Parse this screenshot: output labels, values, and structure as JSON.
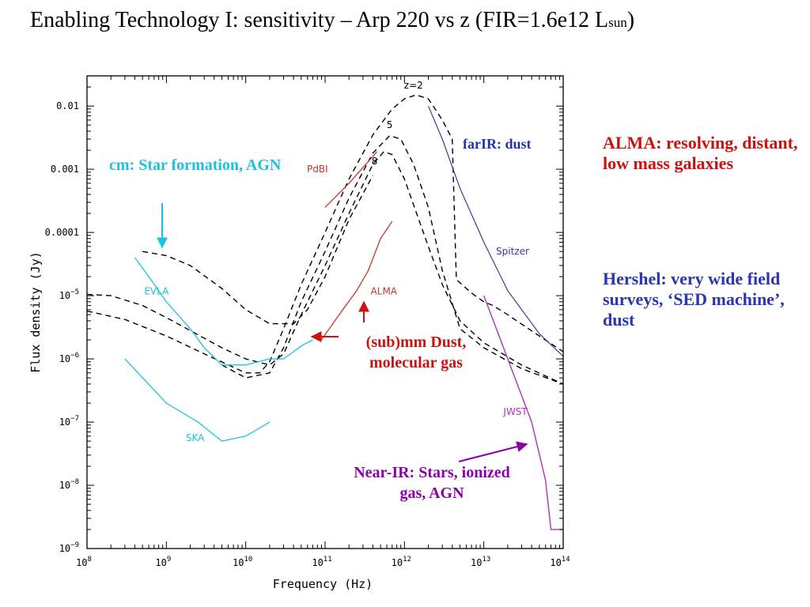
{
  "slide": {
    "title_main": "Enabling Technology I: sensitivity – Arp 220 vs z  (FIR=1.6e12 L",
    "title_sub": "sun",
    "title_end": ")"
  },
  "annotations": {
    "cm": "cm: Star formation, AGN",
    "submm": "(sub)mm Dust, molecular gas",
    "nearir": "Near-IR: Stars, ionized gas,  AGN",
    "farir": "farIR: dust",
    "alma_note": "ALMA: resolving, distant, low mass galaxies",
    "herschel_note": "Hershel: very wide field surveys, ‘SED machine’, dust"
  },
  "colors": {
    "cyan": "#1cc1e2",
    "red": "#cc1111",
    "purple": "#8b00a8",
    "blue": "#2233aa",
    "sed": "#000000",
    "alma_curve": "#c0392b",
    "jwst_curve": "#b030c0",
    "spitzer_curve": "#3a3a9a"
  },
  "chart_data": {
    "type": "line",
    "title": "",
    "xlabel": "Frequency (Hz)",
    "ylabel": "Flux density (Jy)",
    "xscale": "log",
    "yscale": "log",
    "xlim": [
      100000000,
      100000000000000
    ],
    "ylim": [
      1e-09,
      0.03
    ],
    "x_ticks": [
      {
        "v": 100000000.0,
        "base": "10",
        "exp": "8"
      },
      {
        "v": 1000000000.0,
        "base": "10",
        "exp": "9"
      },
      {
        "v": 10000000000.0,
        "base": "10",
        "exp": "10"
      },
      {
        "v": 100000000000.0,
        "base": "10",
        "exp": "11"
      },
      {
        "v": 1000000000000.0,
        "base": "10",
        "exp": "12"
      },
      {
        "v": 10000000000000.0,
        "base": "10",
        "exp": "13"
      },
      {
        "v": 100000000000000.0,
        "base": "10",
        "exp": "14"
      }
    ],
    "y_ticks": [
      {
        "v": 0.01,
        "text": "0.01"
      },
      {
        "v": 0.001,
        "text": "0.001"
      },
      {
        "v": 0.0001,
        "text": "0.0001"
      },
      {
        "v": 1e-05,
        "base": "10",
        "exp": "−5"
      },
      {
        "v": 1e-06,
        "base": "10",
        "exp": "−6"
      },
      {
        "v": 1e-07,
        "base": "10",
        "exp": "−7"
      },
      {
        "v": 1e-08,
        "base": "10",
        "exp": "−8"
      },
      {
        "v": 1e-09,
        "base": "10",
        "exp": "−9"
      }
    ],
    "series": [
      {
        "name": "z=2",
        "kind": "sed",
        "label_at": [
          1300000000000.0,
          0.019
        ],
        "points": [
          [
            100000000.0,
            5.7e-06
          ],
          [
            300000000.0,
            4.2e-06
          ],
          [
            1000000000.0,
            2.3e-06
          ],
          [
            3000000000.0,
            1.2e-06
          ],
          [
            10000000000.0,
            6e-07
          ],
          [
            15000000000.0,
            6e-07
          ],
          [
            20000000000.0,
            9e-07
          ],
          [
            30000000000.0,
            3e-06
          ],
          [
            50000000000.0,
            1.5e-05
          ],
          [
            100000000000.0,
            0.0001
          ],
          [
            200000000000.0,
            0.0007
          ],
          [
            400000000000.0,
            0.0035
          ],
          [
            700000000000.0,
            0.009
          ],
          [
            1000000000000.0,
            0.013
          ],
          [
            1400000000000.0,
            0.015
          ],
          [
            2000000000000.0,
            0.013
          ],
          [
            3000000000000.0,
            0.006
          ],
          [
            4000000000000.0,
            0.003
          ],
          [
            4500000000000.0,
            1.8e-05
          ],
          [
            7000000000000.0,
            1.1e-05
          ],
          [
            10000000000000.0,
            8e-06
          ],
          [
            13000000000000.0,
            7e-06
          ],
          [
            20000000000000.0,
            5e-06
          ],
          [
            50000000000000.0,
            2.3e-06
          ],
          [
            100000000000000.0,
            1.3e-06
          ]
        ]
      },
      {
        "name": "5",
        "kind": "sed",
        "label_at": [
          650000000000.0,
          0.0045
        ],
        "points": [
          [
            5000000000.0,
            8e-07
          ],
          [
            10000000000.0,
            5e-07
          ],
          [
            20000000000.0,
            6e-07
          ],
          [
            30000000000.0,
            1.5e-06
          ],
          [
            50000000000.0,
            8e-06
          ],
          [
            100000000000.0,
            5e-05
          ],
          [
            200000000000.0,
            0.00035
          ],
          [
            400000000000.0,
            0.0018
          ],
          [
            650000000000.0,
            0.0034
          ],
          [
            900000000000.0,
            0.003
          ],
          [
            1300000000000.0,
            0.0012
          ],
          [
            2000000000000.0,
            0.00025
          ],
          [
            3000000000000.0,
            2.5e-05
          ],
          [
            5000000000000.0,
            3e-06
          ],
          [
            10000000000000.0,
            1.5e-06
          ],
          [
            30000000000000.0,
            7e-07
          ],
          [
            100000000000000.0,
            4e-07
          ]
        ]
      },
      {
        "name": "8",
        "kind": "sed",
        "label_at": [
          420000000000.0,
          0.0012
        ],
        "points": [
          [
            100000000.0,
            1.05e-05
          ],
          [
            200000000.0,
            1e-05
          ],
          [
            500000000.0,
            7e-06
          ],
          [
            1000000000.0,
            4.5e-06
          ],
          [
            2000000000.0,
            2.8e-06
          ],
          [
            5000000000.0,
            1.5e-06
          ],
          [
            10000000000.0,
            1e-06
          ],
          [
            20000000000.0,
            8e-07
          ],
          [
            30000000000.0,
            1.2e-06
          ],
          [
            50000000000.0,
            5e-06
          ],
          [
            100000000000.0,
            3e-05
          ],
          [
            200000000000.0,
            0.0002
          ],
          [
            400000000000.0,
            0.0012
          ],
          [
            550000000000.0,
            0.0019
          ],
          [
            700000000000.0,
            0.0017
          ],
          [
            1000000000000.0,
            0.0007
          ],
          [
            2000000000000.0,
            6e-05
          ],
          [
            3000000000000.0,
            1.5e-05
          ],
          [
            5000000000000.0,
            4e-06
          ],
          [
            10000000000000.0,
            1.8e-06
          ],
          [
            30000000000000.0,
            8e-07
          ],
          [
            100000000000000.0,
            4e-07
          ]
        ]
      },
      {
        "name": "",
        "kind": "sed",
        "points": [
          [
            500000000.0,
            5e-05
          ],
          [
            1000000000.0,
            4.3e-05
          ],
          [
            2000000000.0,
            3e-05
          ],
          [
            5000000000.0,
            1.3e-05
          ],
          [
            10000000000.0,
            6e-06
          ],
          [
            20000000000.0,
            3.6e-06
          ],
          [
            40000000000.0,
            3.6e-06
          ],
          [
            60000000000.0,
            6e-06
          ],
          [
            100000000000.0,
            2e-05
          ],
          [
            200000000000.0,
            0.00016
          ],
          [
            400000000000.0,
            0.0008
          ]
        ]
      },
      {
        "name": "EVLA",
        "kind": "cyan",
        "label_at": [
          750000000.0,
          1.05e-05
        ],
        "points": [
          [
            400000000.0,
            4e-05
          ],
          [
            600000000.0,
            2e-05
          ],
          [
            1000000000.0,
            8e-06
          ],
          [
            2000000000.0,
            3e-06
          ],
          [
            3000000000.0,
            1.5e-06
          ],
          [
            5000000000.0,
            8e-07
          ],
          [
            10000000000.0,
            8e-07
          ],
          [
            20000000000.0,
            1e-06
          ],
          [
            30000000000.0,
            1e-06
          ],
          [
            40000000000.0,
            1.3e-06
          ],
          [
            50000000000.0,
            1.6e-06
          ],
          [
            70000000000.0,
            2e-06
          ]
        ]
      },
      {
        "name": "SKA",
        "kind": "cyan",
        "label_at": [
          2300000000.0,
          5e-08
        ],
        "points": [
          [
            300000000.0,
            1e-06
          ],
          [
            1000000000.0,
            2e-07
          ],
          [
            2500000000.0,
            1e-07
          ],
          [
            5000000000.0,
            5e-08
          ],
          [
            10000000000.0,
            6e-08
          ],
          [
            20000000000.0,
            1e-07
          ]
        ]
      },
      {
        "name": "PdBI",
        "kind": "red",
        "label_at": [
          80000000000.0,
          0.0009
        ],
        "points": [
          [
            100000000000.0,
            0.00025
          ],
          [
            200000000000.0,
            0.0006
          ],
          [
            400000000000.0,
            0.0016
          ],
          [
            450000000000.0,
            0.0019
          ]
        ]
      },
      {
        "name": "ALMA",
        "kind": "red",
        "label_at": [
          550000000000.0,
          1.05e-05
        ],
        "points": [
          [
            90000000000.0,
            2e-06
          ],
          [
            150000000000.0,
            5e-06
          ],
          [
            250000000000.0,
            1.2e-05
          ],
          [
            350000000000.0,
            2.5e-05
          ],
          [
            500000000000.0,
            8e-05
          ],
          [
            700000000000.0,
            0.00015
          ]
        ]
      },
      {
        "name": "Spitzer",
        "kind": "blue",
        "label_at": [
          23000000000000.0,
          4.5e-05
        ],
        "points": [
          [
            2000000000000.0,
            0.01
          ],
          [
            3000000000000.0,
            0.003
          ],
          [
            5000000000000.0,
            0.0005
          ],
          [
            10000000000000.0,
            7e-05
          ],
          [
            20000000000000.0,
            1.2e-05
          ],
          [
            50000000000000.0,
            2.5e-06
          ],
          [
            100000000000000.0,
            1.1e-06
          ]
        ]
      },
      {
        "name": "JWST",
        "kind": "purple",
        "label_at": [
          25000000000000.0,
          1.3e-07
        ],
        "points": [
          [
            10000000000000.0,
            1e-05
          ],
          [
            20000000000000.0,
            1e-06
          ],
          [
            40000000000000.0,
            1e-07
          ],
          [
            60000000000000.0,
            1.2e-08
          ],
          [
            70000000000000.0,
            2e-09
          ],
          [
            80000000000000.0,
            2e-09
          ],
          [
            100000000000000.0,
            2e-09
          ]
        ]
      }
    ]
  }
}
